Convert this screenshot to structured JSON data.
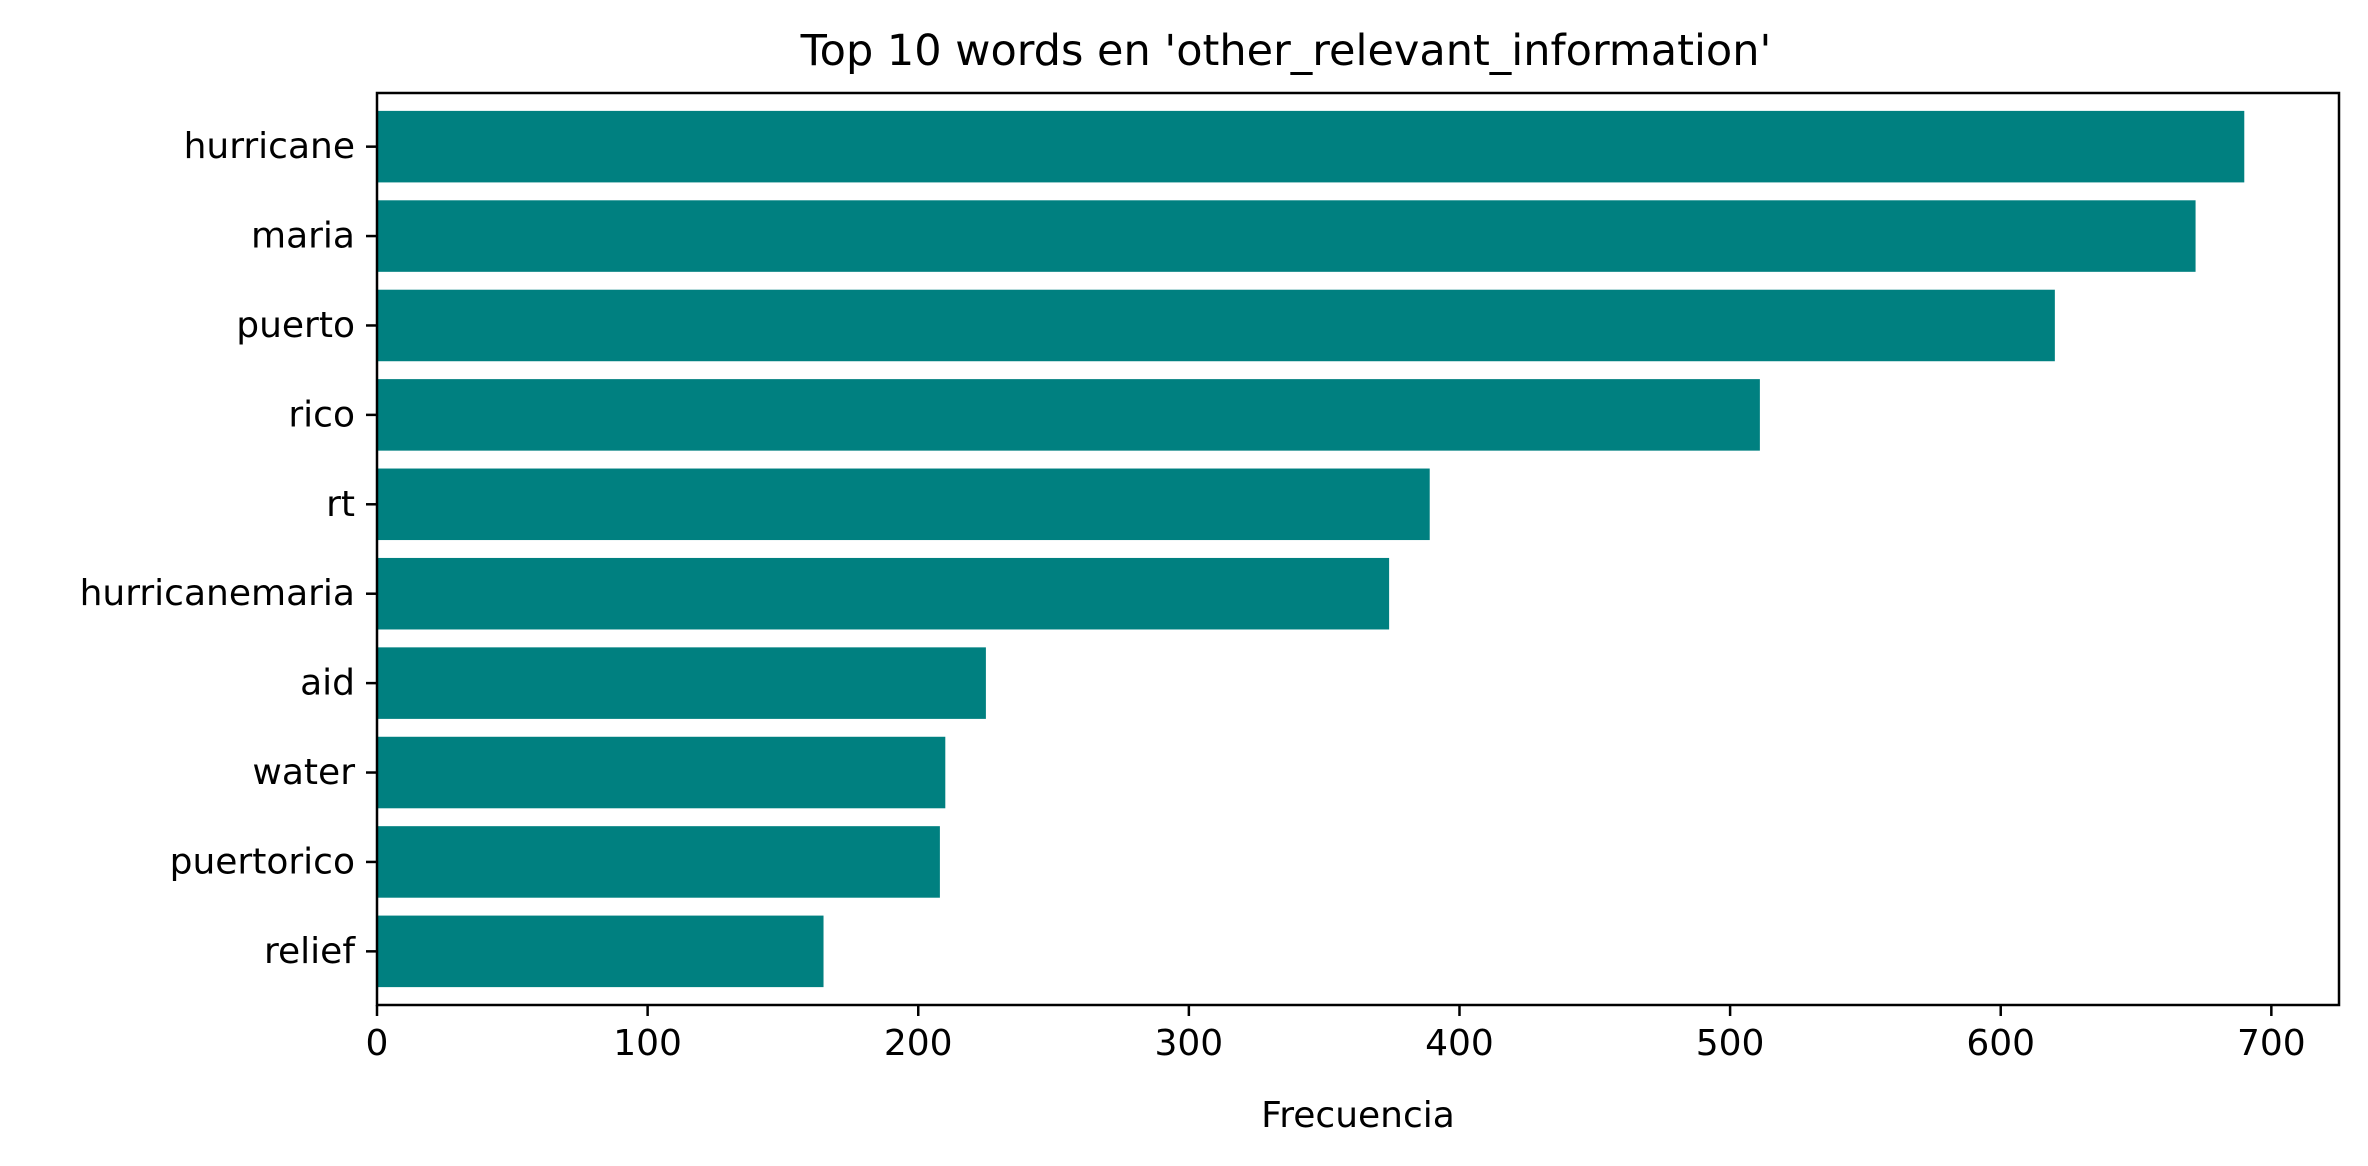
{
  "chart_data": {
    "type": "bar",
    "orientation": "horizontal",
    "title": "Top 10 words en 'other_relevant_information'",
    "xlabel": "Frecuencia",
    "ylabel": "",
    "categories": [
      "hurricane",
      "maria",
      "puerto",
      "rico",
      "rt",
      "hurricanemaria",
      "aid",
      "water",
      "puertorico",
      "relief"
    ],
    "values": [
      690,
      672,
      620,
      511,
      389,
      374,
      225,
      210,
      208,
      165
    ],
    "xlim": [
      0,
      725
    ],
    "xticks": [
      0,
      100,
      200,
      300,
      400,
      500,
      600,
      700
    ],
    "grid": false,
    "legend": "none",
    "bar_color": "#008080"
  }
}
